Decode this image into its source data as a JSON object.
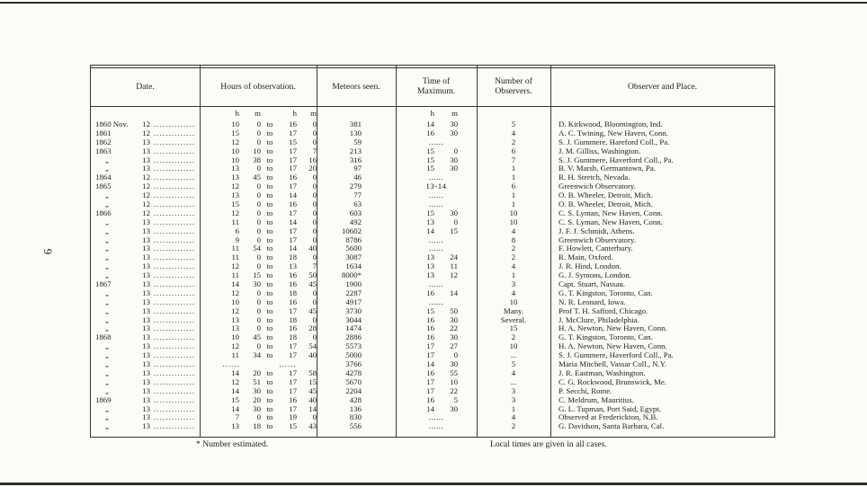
{
  "page": {
    "page_number": "6",
    "colors": {
      "paper": "#fbfbf7",
      "ink": "#1c1c1a"
    },
    "footnotes": {
      "left": "* Number estimated.",
      "right": "Local times are given in all cases."
    }
  },
  "table": {
    "headers": {
      "date": "Date.",
      "hours": "Hours of observation.",
      "meteors": "Meteors seen.",
      "time": [
        "Time of",
        "Maximum."
      ],
      "observers": [
        "Number of",
        "Observers."
      ],
      "observer_place": "Observer and Place."
    },
    "unit_labels": {
      "h": "h",
      "m": "m"
    },
    "to_label": "to",
    "dot_leader": "..............",
    "blank_dots": "......",
    "rows": [
      {
        "year": "1860 Nov.",
        "day": "12",
        "hours": [
          "10",
          "0",
          "16",
          "0"
        ],
        "meteors": "381",
        "max": [
          "14",
          "30"
        ],
        "observers": "5",
        "place": "D. Kirkwood, Bloomington, Ind."
      },
      {
        "year": "1861",
        "day": "12",
        "hours": [
          "15",
          "0",
          "17",
          "0"
        ],
        "meteors": "130",
        "max": [
          "16",
          "30"
        ],
        "observers": "4",
        "place": "A. C. Twining, New Haven, Conn."
      },
      {
        "year": "1862",
        "day": "13",
        "hours": [
          "12",
          "0",
          "15",
          "0"
        ],
        "meteors": "59",
        "max": "......",
        "observers": "2",
        "place": "S. J. Gummere, Hareford Coll., Pa."
      },
      {
        "year": "1863",
        "day": "13",
        "hours": [
          "10",
          "10",
          "17",
          "7"
        ],
        "meteors": "213",
        "max": [
          "15",
          "0"
        ],
        "observers": "6",
        "place": "J. M. Gilliss, Washington."
      },
      {
        "year": "„",
        "day": "13",
        "hours": [
          "10",
          "38",
          "17",
          "16"
        ],
        "meteors": "316",
        "max": [
          "15",
          "30"
        ],
        "observers": "7",
        "place": "S. J. Gummere, Haverford Coll., Pa."
      },
      {
        "year": "„",
        "day": "13",
        "hours": [
          "13",
          "0",
          "17",
          "20"
        ],
        "meteors": "97",
        "max": [
          "15",
          "30"
        ],
        "observers": "1",
        "place": "B. V. Marsh, Germantown, Pa."
      },
      {
        "year": "1864",
        "day": "12",
        "hours": [
          "13",
          "45",
          "16",
          "0"
        ],
        "meteors": "46",
        "max": "......",
        "observers": "1",
        "place": "R. H. Stretch, Nevada."
      },
      {
        "year": "1865",
        "day": "12",
        "hours": [
          "12",
          "0",
          "17",
          "0"
        ],
        "meteors": "279",
        "max": "13-14",
        "observers": "6",
        "place": "Greenwich Observatory."
      },
      {
        "year": "„",
        "day": "12",
        "hours": [
          "13",
          "0",
          "14",
          "0"
        ],
        "meteors": "77",
        "max": "......",
        "observers": "1",
        "place": "O. B. Wheeler, Detroit, Mich."
      },
      {
        "year": "„",
        "day": "12",
        "hours": [
          "15",
          "0",
          "16",
          "0"
        ],
        "meteors": "63",
        "max": "......",
        "observers": "1",
        "place": "O. B. Wheeler, Detroit, Mich."
      },
      {
        "year": "1866",
        "day": "12",
        "hours": [
          "12",
          "0",
          "17",
          "0"
        ],
        "meteors": "603",
        "max": [
          "15",
          "30"
        ],
        "observers": "10",
        "place": "C. S. Lyman, New Haven, Conn."
      },
      {
        "year": "„",
        "day": "13",
        "hours": [
          "11",
          "0",
          "14",
          "0"
        ],
        "meteors": "492",
        "max": [
          "13",
          "0"
        ],
        "observers": "10",
        "place": "C. S. Lyman, New Haven, Conn."
      },
      {
        "year": "„",
        "day": "13",
        "hours": [
          "6",
          "0",
          "17",
          "0"
        ],
        "meteors": "10602",
        "max": [
          "14",
          "15"
        ],
        "observers": "4",
        "place": "J. F. J. Schmidt, Athens."
      },
      {
        "year": "„",
        "day": "13",
        "hours": [
          "9",
          "0",
          "17",
          "0"
        ],
        "meteors": "8786",
        "max": "......",
        "observers": "8",
        "place": "Greenwich Observatory."
      },
      {
        "year": "„",
        "day": "13",
        "hours": [
          "11",
          "54",
          "14",
          "40"
        ],
        "meteors": "5600",
        "max": "......",
        "observers": "2",
        "place": "F. Howlett, Canterbury."
      },
      {
        "year": "„",
        "day": "13",
        "hours": [
          "11",
          "0",
          "18",
          "0"
        ],
        "meteors": "3087",
        "max": [
          "13",
          "24"
        ],
        "observers": "2",
        "place": "R. Main, Oxford."
      },
      {
        "year": "„",
        "day": "13",
        "hours": [
          "12",
          "0",
          "13",
          "7"
        ],
        "meteors": "1634",
        "max": [
          "13",
          "11"
        ],
        "observers": "4",
        "place": "J. R. Hind, London."
      },
      {
        "year": "„",
        "day": "13",
        "hours": [
          "11",
          "15",
          "16",
          "50"
        ],
        "meteors": "8000*",
        "max": [
          "13",
          "12"
        ],
        "observers": "1",
        "place": "G. J. Symons, London."
      },
      {
        "year": "1867",
        "day": "13",
        "hours": [
          "14",
          "30",
          "16",
          "45"
        ],
        "meteors": "1900",
        "max": "......",
        "observers": "3",
        "place": "Capt. Stuart, Nassau."
      },
      {
        "year": "„",
        "day": "13",
        "hours": [
          "12",
          "0",
          "18",
          "0"
        ],
        "meteors": "2287",
        "max": [
          "16",
          "14"
        ],
        "observers": "4",
        "place": "G. T. Kingston, Toronto, Can."
      },
      {
        "year": "„",
        "day": "13",
        "hours": [
          "10",
          "0",
          "16",
          "0"
        ],
        "meteors": "4917",
        "max": "......",
        "observers": "10",
        "place": "N. R. Leonard, Iowa."
      },
      {
        "year": "„",
        "day": "13",
        "hours": [
          "12",
          "0",
          "17",
          "45"
        ],
        "meteors": "3730",
        "max": [
          "15",
          "50"
        ],
        "observers": "Many.",
        "place": "Prof T. H. Safford, Chicago."
      },
      {
        "year": "„",
        "day": "13",
        "hours": [
          "13",
          "0",
          "18",
          "0"
        ],
        "meteors": "3044",
        "max": [
          "16",
          "30"
        ],
        "observers": "Several.",
        "place": "J. McClure, Philadelphia."
      },
      {
        "year": "„",
        "day": "13",
        "hours": [
          "13",
          "0",
          "16",
          "28"
        ],
        "meteors": "1474",
        "max": [
          "16",
          "22"
        ],
        "observers": "15",
        "place": "H. A. Newton, New Haven, Conn."
      },
      {
        "year": "1868",
        "day": "13",
        "hours": [
          "10",
          "45",
          "18",
          "0"
        ],
        "meteors": "2886",
        "max": [
          "16",
          "30"
        ],
        "observers": "2",
        "place": "G. T. Kingston, Toronto, Can."
      },
      {
        "year": "„",
        "day": "13",
        "hours": [
          "12",
          "0",
          "17",
          "54"
        ],
        "meteors": "5573",
        "max": [
          "17",
          "27"
        ],
        "observers": "10",
        "place": "H. A. Newton, New Haven, Conn."
      },
      {
        "year": "„",
        "day": "13",
        "hours": [
          "11",
          "34",
          "17",
          "40"
        ],
        "meteors": "5000",
        "max": [
          "17",
          "0"
        ],
        "observers": "...",
        "place": "S. J. Gummere, Haverford Coll., Pa."
      },
      {
        "year": "„",
        "day": "13",
        "hours": null,
        "meteors": "3766",
        "max": [
          "14",
          "30"
        ],
        "observers": "5",
        "place": "Maria Mitchell, Vassar Coll., N.Y."
      },
      {
        "year": "„",
        "day": "13",
        "hours": [
          "14",
          "20",
          "17",
          "58"
        ],
        "meteors": "4278",
        "max": [
          "16",
          "55"
        ],
        "observers": "4",
        "place": "J. R. Eastman, Washington."
      },
      {
        "year": "„",
        "day": "13",
        "hours": [
          "12",
          "51",
          "17",
          "15"
        ],
        "meteors": "5670",
        "max": [
          "17",
          "10"
        ],
        "observers": "...",
        "place": "C. G. Rockwood, Brunswick, Me."
      },
      {
        "year": "„",
        "day": "13",
        "hours": [
          "14",
          "30",
          "17",
          "45"
        ],
        "meteors": "2204",
        "max": [
          "17",
          "22"
        ],
        "observers": "3",
        "place": "P. Secchi, Rome."
      },
      {
        "year": "1869",
        "day": "13",
        "hours": [
          "15",
          "20",
          "16",
          "40"
        ],
        "meteors": "428",
        "max": [
          "16",
          "5"
        ],
        "observers": "3",
        "place": "C. Meldrum, Mauritius."
      },
      {
        "year": "„",
        "day": "13",
        "hours": [
          "14",
          "30",
          "17",
          "14"
        ],
        "meteors": "136",
        "max": [
          "14",
          "30"
        ],
        "observers": "1",
        "place": "G. L. Tupman, Port Said, Egypt."
      },
      {
        "year": "„",
        "day": "13",
        "hours": [
          "7",
          "0",
          "19",
          "0"
        ],
        "meteors": "830",
        "max": "......",
        "observers": "4",
        "place": "Observed at Frederickton, N.B."
      },
      {
        "year": "„",
        "day": "13",
        "hours": [
          "13",
          "18",
          "15",
          "43"
        ],
        "meteors": "556",
        "max": "......",
        "observers": "2",
        "place": "G. Davidson, Santa Barbara, Cal."
      }
    ]
  }
}
